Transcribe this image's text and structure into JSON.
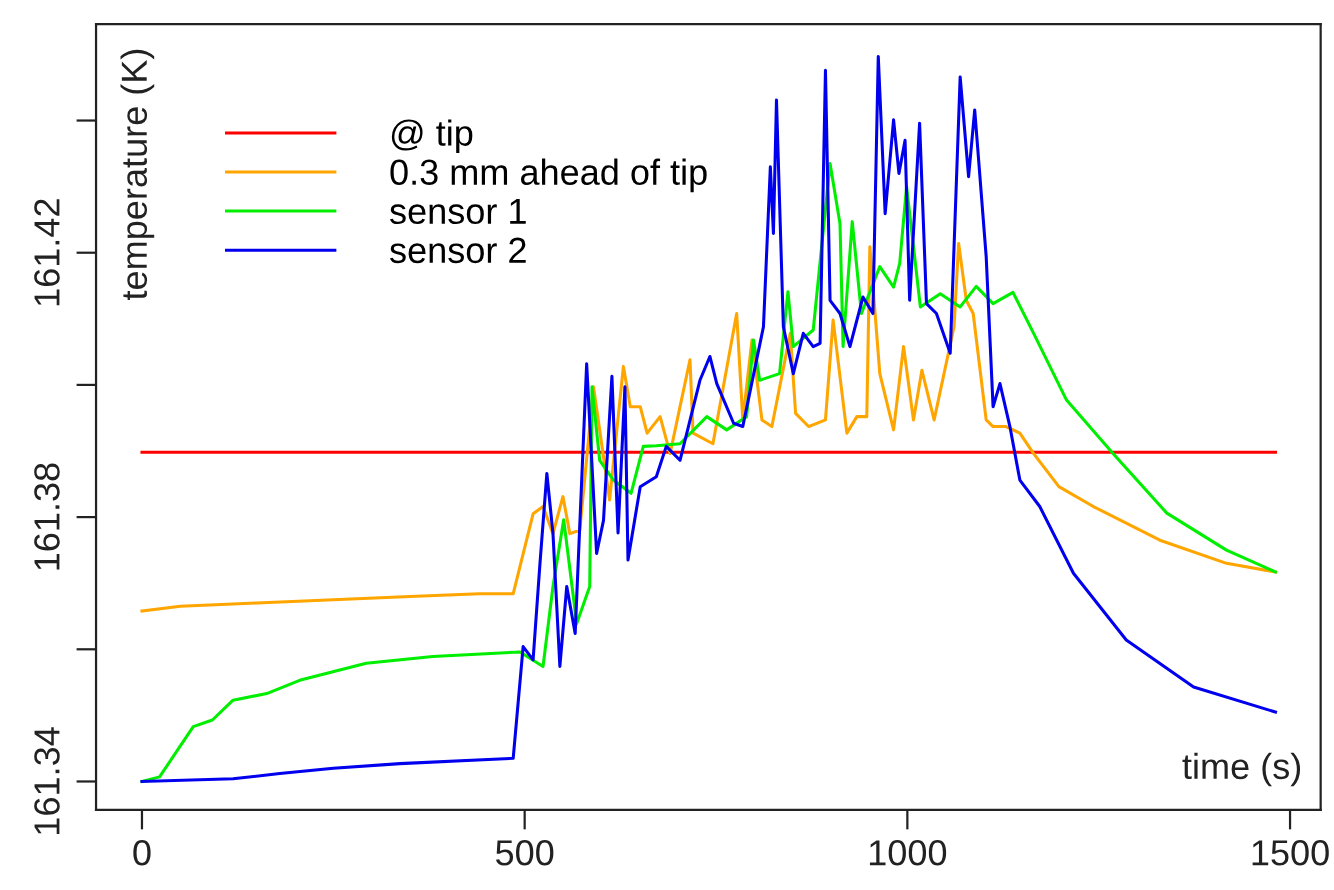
{
  "chart_data": {
    "type": "line",
    "xlabel": "time (s)",
    "ylabel": "temperature (K)",
    "xlim": [
      -60,
      1540
    ],
    "ylim": [
      161.3357,
      161.4546
    ],
    "xticks": [
      0,
      500,
      1000,
      1500
    ],
    "yticks": [
      161.34,
      {
        "value": 161.36,
        "label": null
      },
      161.38,
      {
        "value": 161.4,
        "label": null
      },
      161.42,
      {
        "value": 161.44,
        "label": null
      }
    ],
    "grid": false,
    "legend": "top left",
    "marker": "none",
    "line_style": "solid",
    "series": [
      {
        "name": "@ tip",
        "color": "#ff0000",
        "x": [
          0,
          1481
        ],
        "values": [
          161.3898,
          161.3898
        ]
      },
      {
        "name": "0.3 mm ahead of tip",
        "color": "#ffa500",
        "x": [
          0,
          50,
          150,
          250,
          350,
          441,
          485,
          511,
          524,
          537,
          550,
          559,
          572,
          590,
          611,
          629,
          638,
          651,
          660,
          677,
          690,
          716,
          720,
          746,
          777,
          785,
          797,
          810,
          823,
          847,
          854,
          871,
          893,
          903,
          921,
          934,
          947,
          951,
          964,
          982,
          995,
          1008,
          1019,
          1035,
          1061,
          1067,
          1077,
          1086,
          1103,
          1112,
          1129,
          1147,
          1165,
          1198,
          1243,
          1330,
          1417,
          1481
        ],
        "values": [
          161.3658,
          161.3665,
          161.367,
          161.3675,
          161.368,
          161.3684,
          161.3684,
          161.3805,
          161.3816,
          161.3775,
          161.3831,
          161.3775,
          161.378,
          161.3997,
          161.3826,
          161.4028,
          161.3967,
          161.3967,
          161.3927,
          161.3952,
          161.3896,
          161.4038,
          161.3927,
          161.3911,
          161.4108,
          161.3947,
          161.4068,
          161.3947,
          161.3937,
          161.4078,
          161.3957,
          161.3937,
          161.3947,
          161.4098,
          161.3927,
          161.3952,
          161.3952,
          161.4209,
          161.4017,
          161.3932,
          161.4058,
          161.3947,
          161.4022,
          161.3947,
          161.4088,
          161.4214,
          161.4128,
          161.4108,
          161.3947,
          161.3937,
          161.3937,
          161.3927,
          161.3896,
          161.3846,
          161.3816,
          161.3765,
          161.373,
          161.3717
        ]
      },
      {
        "name": "sensor 1",
        "color": "#00ee00",
        "x": [
          0,
          23,
          67,
          92,
          119,
          163,
          206,
          293,
          380,
          494,
          524,
          537,
          551,
          568,
          585,
          588,
          598,
          616,
          639,
          655,
          672,
          703,
          738,
          764,
          790,
          799,
          807,
          833,
          844,
          851,
          877,
          899,
          912,
          916,
          928,
          940,
          964,
          982,
          990,
          999,
          1017,
          1043,
          1069,
          1090,
          1112,
          1138,
          1165,
          1208,
          1269,
          1339,
          1417,
          1481
        ],
        "values": [
          161.34,
          161.3407,
          161.3483,
          161.3493,
          161.3523,
          161.3533,
          161.3553,
          161.3579,
          161.3589,
          161.3596,
          161.3574,
          161.3695,
          161.3796,
          161.3639,
          161.3695,
          161.3997,
          161.3886,
          161.3856,
          161.3836,
          161.3907,
          161.3908,
          161.3911,
          161.3952,
          161.3932,
          161.3952,
          161.4068,
          161.4007,
          161.4017,
          161.4141,
          161.4058,
          161.4083,
          161.4335,
          161.4244,
          161.4058,
          161.4247,
          161.4108,
          161.4179,
          161.4148,
          161.4184,
          161.43,
          161.4118,
          161.4138,
          161.4118,
          161.4149,
          161.4123,
          161.414,
          161.4078,
          161.3977,
          161.3896,
          161.3806,
          161.375,
          161.3717
        ]
      },
      {
        "name": "sensor 2",
        "color": "#0000ee",
        "x": [
          0,
          119,
          180,
          250,
          337,
          485,
          498,
          511,
          520,
          529,
          537,
          546,
          555,
          566,
          581,
          594,
          603,
          614,
          622,
          631,
          635,
          651,
          672,
          685,
          703,
          729,
          742,
          751,
          773,
          785,
          812,
          821,
          825,
          829,
          838,
          851,
          864,
          877,
          886,
          893,
          899,
          912,
          925,
          942,
          955,
          962,
          971,
          982,
          989,
          997,
          1003,
          1016,
          1025,
          1038,
          1056,
          1069,
          1080,
          1088,
          1103,
          1112,
          1121,
          1134,
          1147,
          1173,
          1217,
          1286,
          1374,
          1481
        ],
        "values": [
          161.34,
          161.3404,
          161.3412,
          161.342,
          161.3427,
          161.3435,
          161.3604,
          161.3584,
          161.373,
          161.3866,
          161.3775,
          161.3574,
          161.3695,
          161.3624,
          161.4032,
          161.3745,
          161.3795,
          161.4013,
          161.3776,
          161.3997,
          161.3735,
          161.3846,
          161.3861,
          161.3907,
          161.3886,
          161.4007,
          161.4043,
          161.4002,
          161.3942,
          161.3937,
          161.4088,
          161.433,
          161.4229,
          161.4431,
          161.4088,
          161.4017,
          161.4078,
          161.4058,
          161.4063,
          161.4476,
          161.4128,
          161.4108,
          161.4058,
          161.4133,
          161.4108,
          161.4497,
          161.4259,
          161.4401,
          161.432,
          161.437,
          161.4128,
          161.4396,
          161.4123,
          161.4108,
          161.4048,
          161.4466,
          161.4315,
          161.4416,
          161.4194,
          161.3967,
          161.4002,
          161.3937,
          161.3856,
          161.3816,
          161.3715,
          161.3614,
          161.3543,
          161.3505
        ]
      }
    ]
  }
}
